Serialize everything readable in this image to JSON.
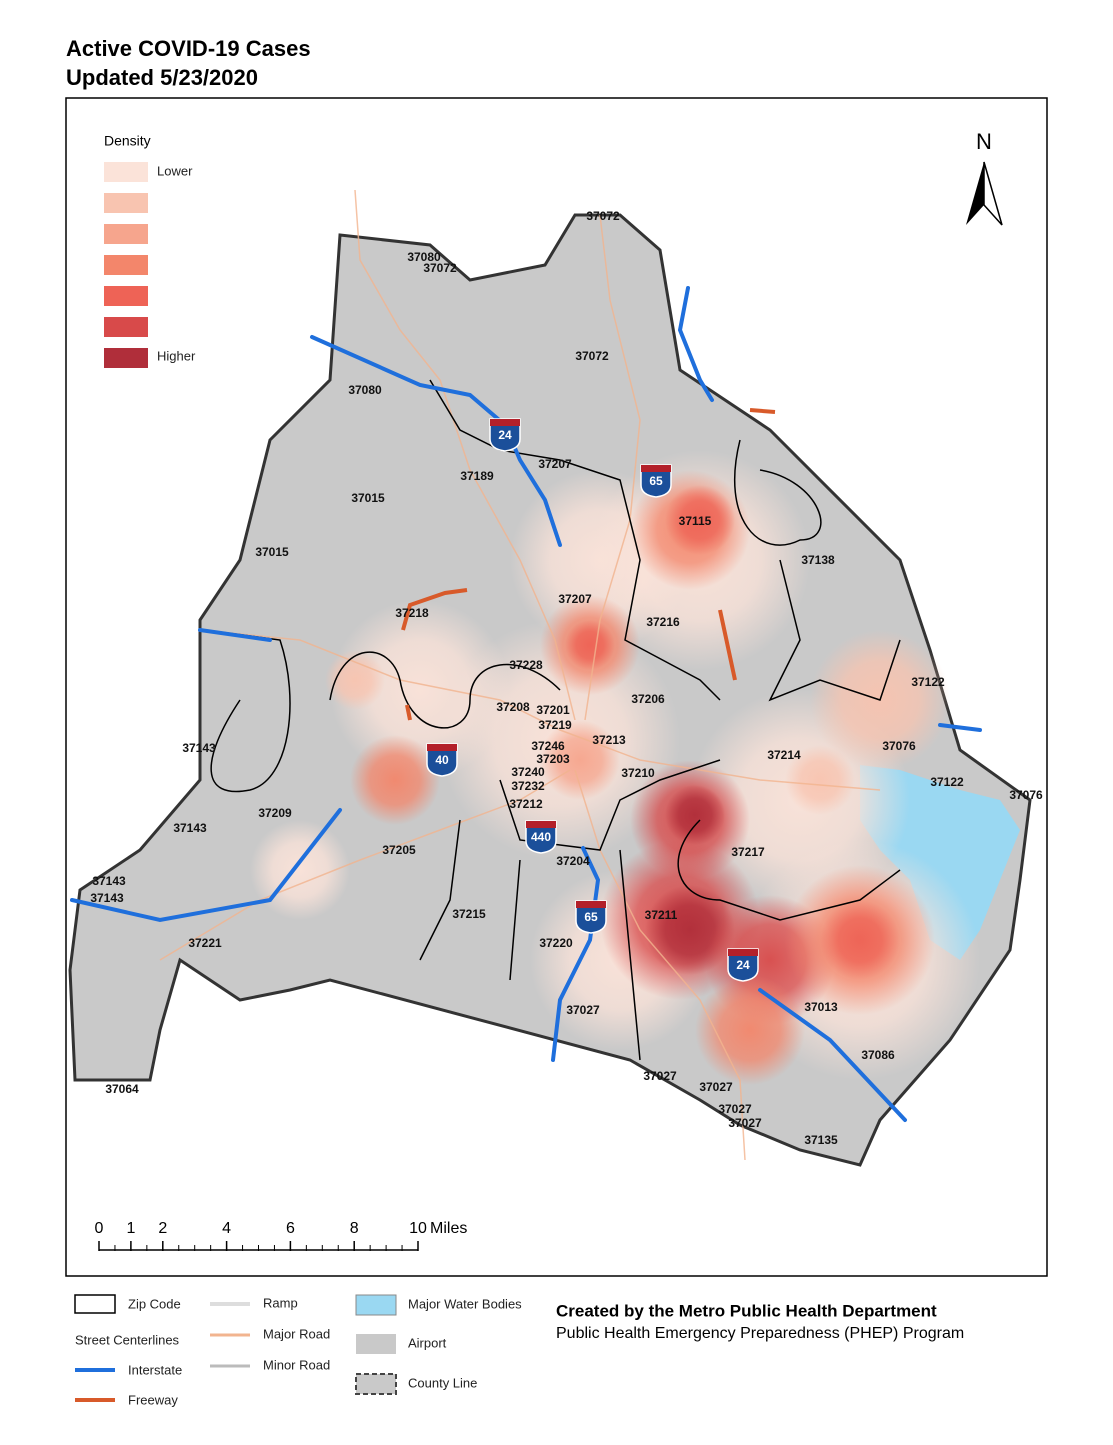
{
  "title": "Active COVID-19 Cases",
  "subtitle": "Updated 5/23/2020",
  "density_legend": {
    "title": "Density",
    "low": "Lower",
    "high": "Higher",
    "colors": [
      "#fbe3d9",
      "#f8c4b0",
      "#f6a58d",
      "#f3866b",
      "#ee6356",
      "#d84a4a",
      "#b02e3a"
    ]
  },
  "north": "N",
  "scale_bar": {
    "ticks": [
      0,
      1,
      2,
      4,
      6,
      8,
      10
    ],
    "unit": "Miles"
  },
  "zip_labels": [
    "37072",
    "37080",
    "37072",
    "37072",
    "37080",
    "37189",
    "37207",
    "37015",
    "37015",
    "37115",
    "37138",
    "37218",
    "37207",
    "37216",
    "37228",
    "37206",
    "37122",
    "37208",
    "37201",
    "37219",
    "37246",
    "37213",
    "37203",
    "37143",
    "37076",
    "37214",
    "37240",
    "37210",
    "37232",
    "37122",
    "37076",
    "37212",
    "37209",
    "37143",
    "37205",
    "37217",
    "37204",
    "37143",
    "37143",
    "37215",
    "37211",
    "37220",
    "37221",
    "37013",
    "37027",
    "37086",
    "37027",
    "37027",
    "37064",
    "37027",
    "37027",
    "37135"
  ],
  "interstate_shields": [
    "24",
    "65",
    "40",
    "440",
    "65",
    "24"
  ],
  "legend": {
    "zip_code": "Zip Code",
    "street_centerlines": "Street Centerlines",
    "interstate": "Interstate",
    "freeway": "Freeway",
    "ramp": "Ramp",
    "major_road": "Major Road",
    "minor_road": "Minor Road",
    "water": "Major Water Bodies",
    "airport": "Airport",
    "county_line": "County Line"
  },
  "credit": {
    "line1": "Created by the Metro Public Health Department",
    "line2": "Public Health Emergency Preparedness (PHEP) Program"
  }
}
